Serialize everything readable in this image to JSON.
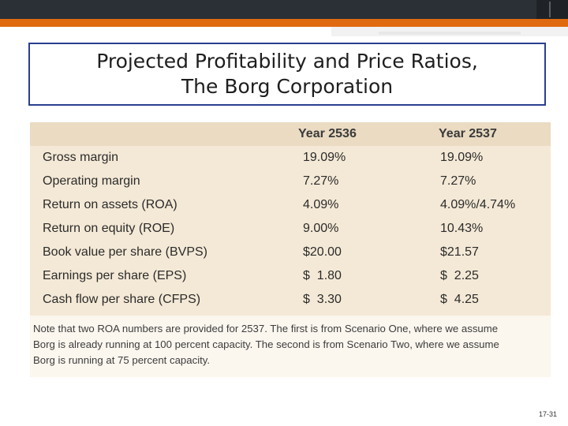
{
  "slide": {
    "title_line1": "Projected Profitability and Price Ratios,",
    "title_line2": "The Borg Corporation",
    "slide_number": "17-31"
  },
  "table": {
    "columns": [
      "",
      "Year 2536",
      "Year 2537"
    ],
    "rows": [
      {
        "label": "Gross margin",
        "y2536": "19.09%",
        "y2537": "19.09%"
      },
      {
        "label": "Operating margin",
        "y2536": "7.27%",
        "y2537": "7.27%"
      },
      {
        "label": "Return on assets (ROA)",
        "y2536": "4.09%",
        "y2537": "4.09%/4.74%"
      },
      {
        "label": "Return on equity (ROE)",
        "y2536": "9.00%",
        "y2537": "10.43%"
      },
      {
        "label": "Book value per share (BVPS)",
        "y2536": "$20.00",
        "y2537": "$21.57"
      },
      {
        "label": "Earnings per share (EPS)",
        "y2536": "$  1.80",
        "y2537": "$  2.25"
      },
      {
        "label": "Cash flow per share (CFPS)",
        "y2536": "$  3.30",
        "y2537": "$  4.25"
      }
    ]
  },
  "note": {
    "line1": "Note that two ROA numbers are provided for 2537. The first is from Scenario One, where we assume",
    "line2": "Borg is already running at 100 percent capacity. The second is from Scenario Two, where we assume",
    "line3": "Borg is running at 75 percent capacity."
  },
  "colors": {
    "accent": "#e06a10",
    "title_border": "#2a3f8f",
    "table_bg": "#f4e9d6",
    "header_bg": "#eadbc2"
  }
}
